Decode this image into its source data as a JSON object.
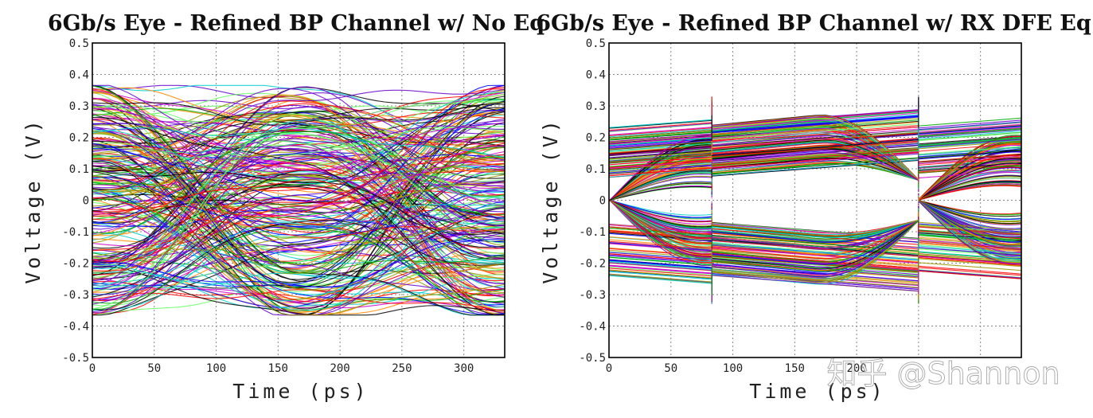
{
  "chart_data": [
    {
      "type": "line",
      "title": "6Gb/s Eye - Refined BP Channel w/ No Eq",
      "xlabel": "Time (ps)",
      "ylabel": "Voltage (V)",
      "xlim": [
        0,
        333
      ],
      "ylim": [
        -0.5,
        0.5
      ],
      "xticks": [
        0,
        50,
        100,
        150,
        200,
        250,
        300
      ],
      "xtick_labels": [
        "0",
        "50",
        "100",
        "150",
        "200",
        "250",
        "300"
      ],
      "yticks": [
        0.5,
        0.4,
        0.3,
        0.2,
        0.1,
        0,
        -0.1,
        -0.2,
        -0.3,
        -0.4,
        -0.5
      ],
      "ytick_labels": [
        "0.5",
        "0.4",
        "0.3",
        "0.2",
        "0.1",
        "0",
        "-0.1",
        "-0.2",
        "-0.3",
        "-0.4",
        "-0.5"
      ],
      "grid": true,
      "eye": {
        "amplitude_max": 0.37,
        "eye_open": false,
        "crossings_ps": [
          0,
          167,
          333
        ],
        "dfe_step_ps": null
      }
    },
    {
      "type": "line",
      "title": "6Gb/s Eye - Refined BP Channel w/ RX DFE Eq",
      "xlabel": "Time (ps)",
      "ylabel": "Voltage (V)",
      "xlim": [
        0,
        333
      ],
      "ylim": [
        -0.5,
        0.5
      ],
      "xticks": [
        0,
        50,
        100,
        150,
        200,
        250,
        300
      ],
      "xtick_labels": [
        "0",
        "50",
        "100",
        "150",
        "200",
        "",
        ""
      ],
      "yticks": [
        0.5,
        0.4,
        0.3,
        0.2,
        0.1,
        0,
        -0.1,
        -0.2,
        -0.3,
        -0.4,
        -0.5
      ],
      "ytick_labels": [
        "0.5",
        "0.4",
        "0.3",
        "0.2",
        "0.1",
        "0",
        "-0.1",
        "-0.2",
        "-0.3",
        "-0.4",
        "-0.5"
      ],
      "grid": true,
      "eye": {
        "amplitude_max": 0.34,
        "inner_eye_height": 0.07,
        "eye_open": true,
        "crossings_ps": [
          50,
          217
        ],
        "dfe_step_ps": [
          83,
          250
        ]
      }
    }
  ],
  "watermark": "知乎 @Shannon",
  "colors": {
    "trace_palette": [
      "#ff0000",
      "#0000ff",
      "#00aa00",
      "#00cccc",
      "#cc00cc",
      "#999900",
      "#000000",
      "#ff8800",
      "#6600cc",
      "#66ff66"
    ]
  }
}
